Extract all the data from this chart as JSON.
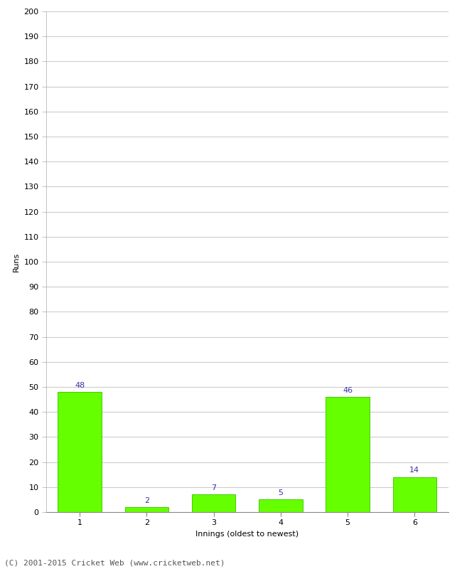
{
  "categories": [
    "1",
    "2",
    "3",
    "4",
    "5",
    "6"
  ],
  "values": [
    48,
    2,
    7,
    5,
    46,
    14
  ],
  "bar_color": "#66ff00",
  "bar_edge_color": "#44cc00",
  "label_color": "#3333aa",
  "xlabel": "Innings (oldest to newest)",
  "ylabel": "Runs",
  "ylim": [
    0,
    200
  ],
  "yticks": [
    0,
    10,
    20,
    30,
    40,
    50,
    60,
    70,
    80,
    90,
    100,
    110,
    120,
    130,
    140,
    150,
    160,
    170,
    180,
    190,
    200
  ],
  "footer": "(C) 2001-2015 Cricket Web (www.cricketweb.net)",
  "background_color": "#ffffff",
  "grid_color": "#cccccc",
  "label_fontsize": 8,
  "tick_fontsize": 8,
  "axis_label_fontsize": 8,
  "footer_fontsize": 8
}
